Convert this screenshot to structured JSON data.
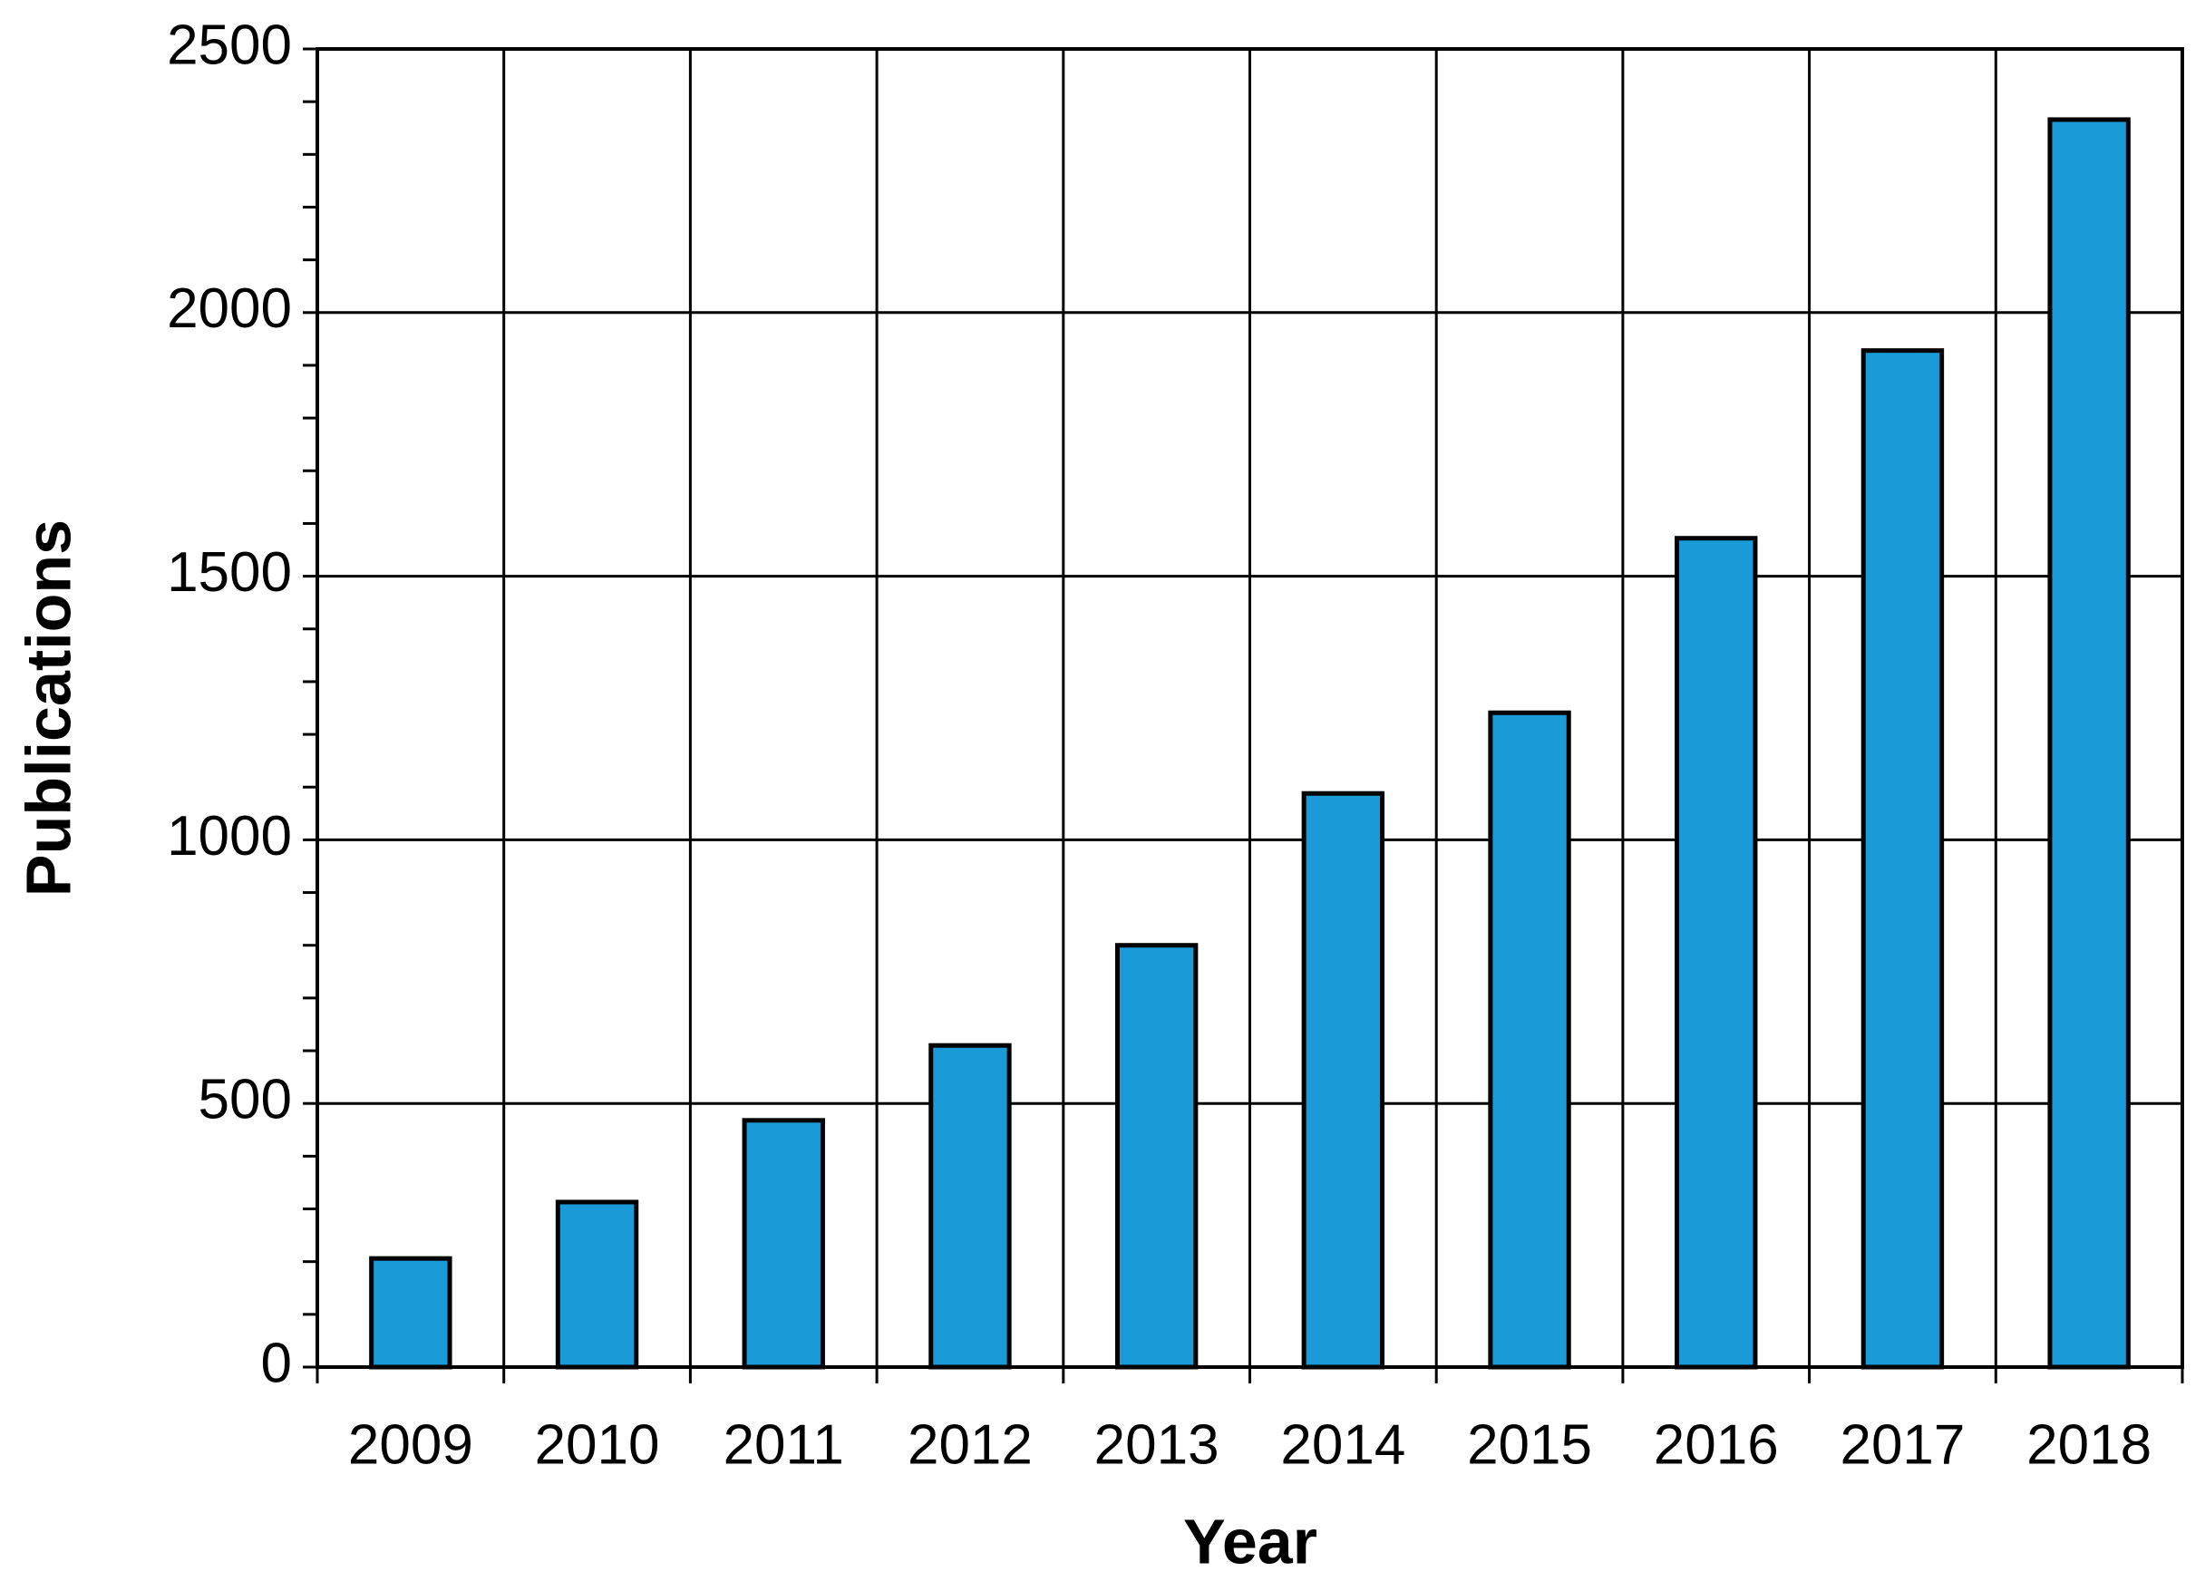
{
  "chart_data": {
    "type": "bar",
    "xlabel": "Year",
    "ylabel": "Publications",
    "categories": [
      "2009",
      "2010",
      "2011",
      "2012",
      "2013",
      "2014",
      "2015",
      "2016",
      "2017",
      "2018"
    ],
    "values": [
      206,
      313,
      468,
      610,
      800,
      1088,
      1241,
      1572,
      1928,
      2366
    ],
    "color": "#1a9ad6",
    "ylim": [
      0,
      2500
    ],
    "yticks": [
      0,
      500,
      1000,
      1500,
      2000,
      2500
    ],
    "yminorticks": [
      100,
      200,
      300,
      400,
      600,
      700,
      800,
      900,
      1100,
      1200,
      1300,
      1400,
      1600,
      1700,
      1800,
      1900,
      2100,
      2200,
      2300,
      2400
    ],
    "grid": true
  }
}
